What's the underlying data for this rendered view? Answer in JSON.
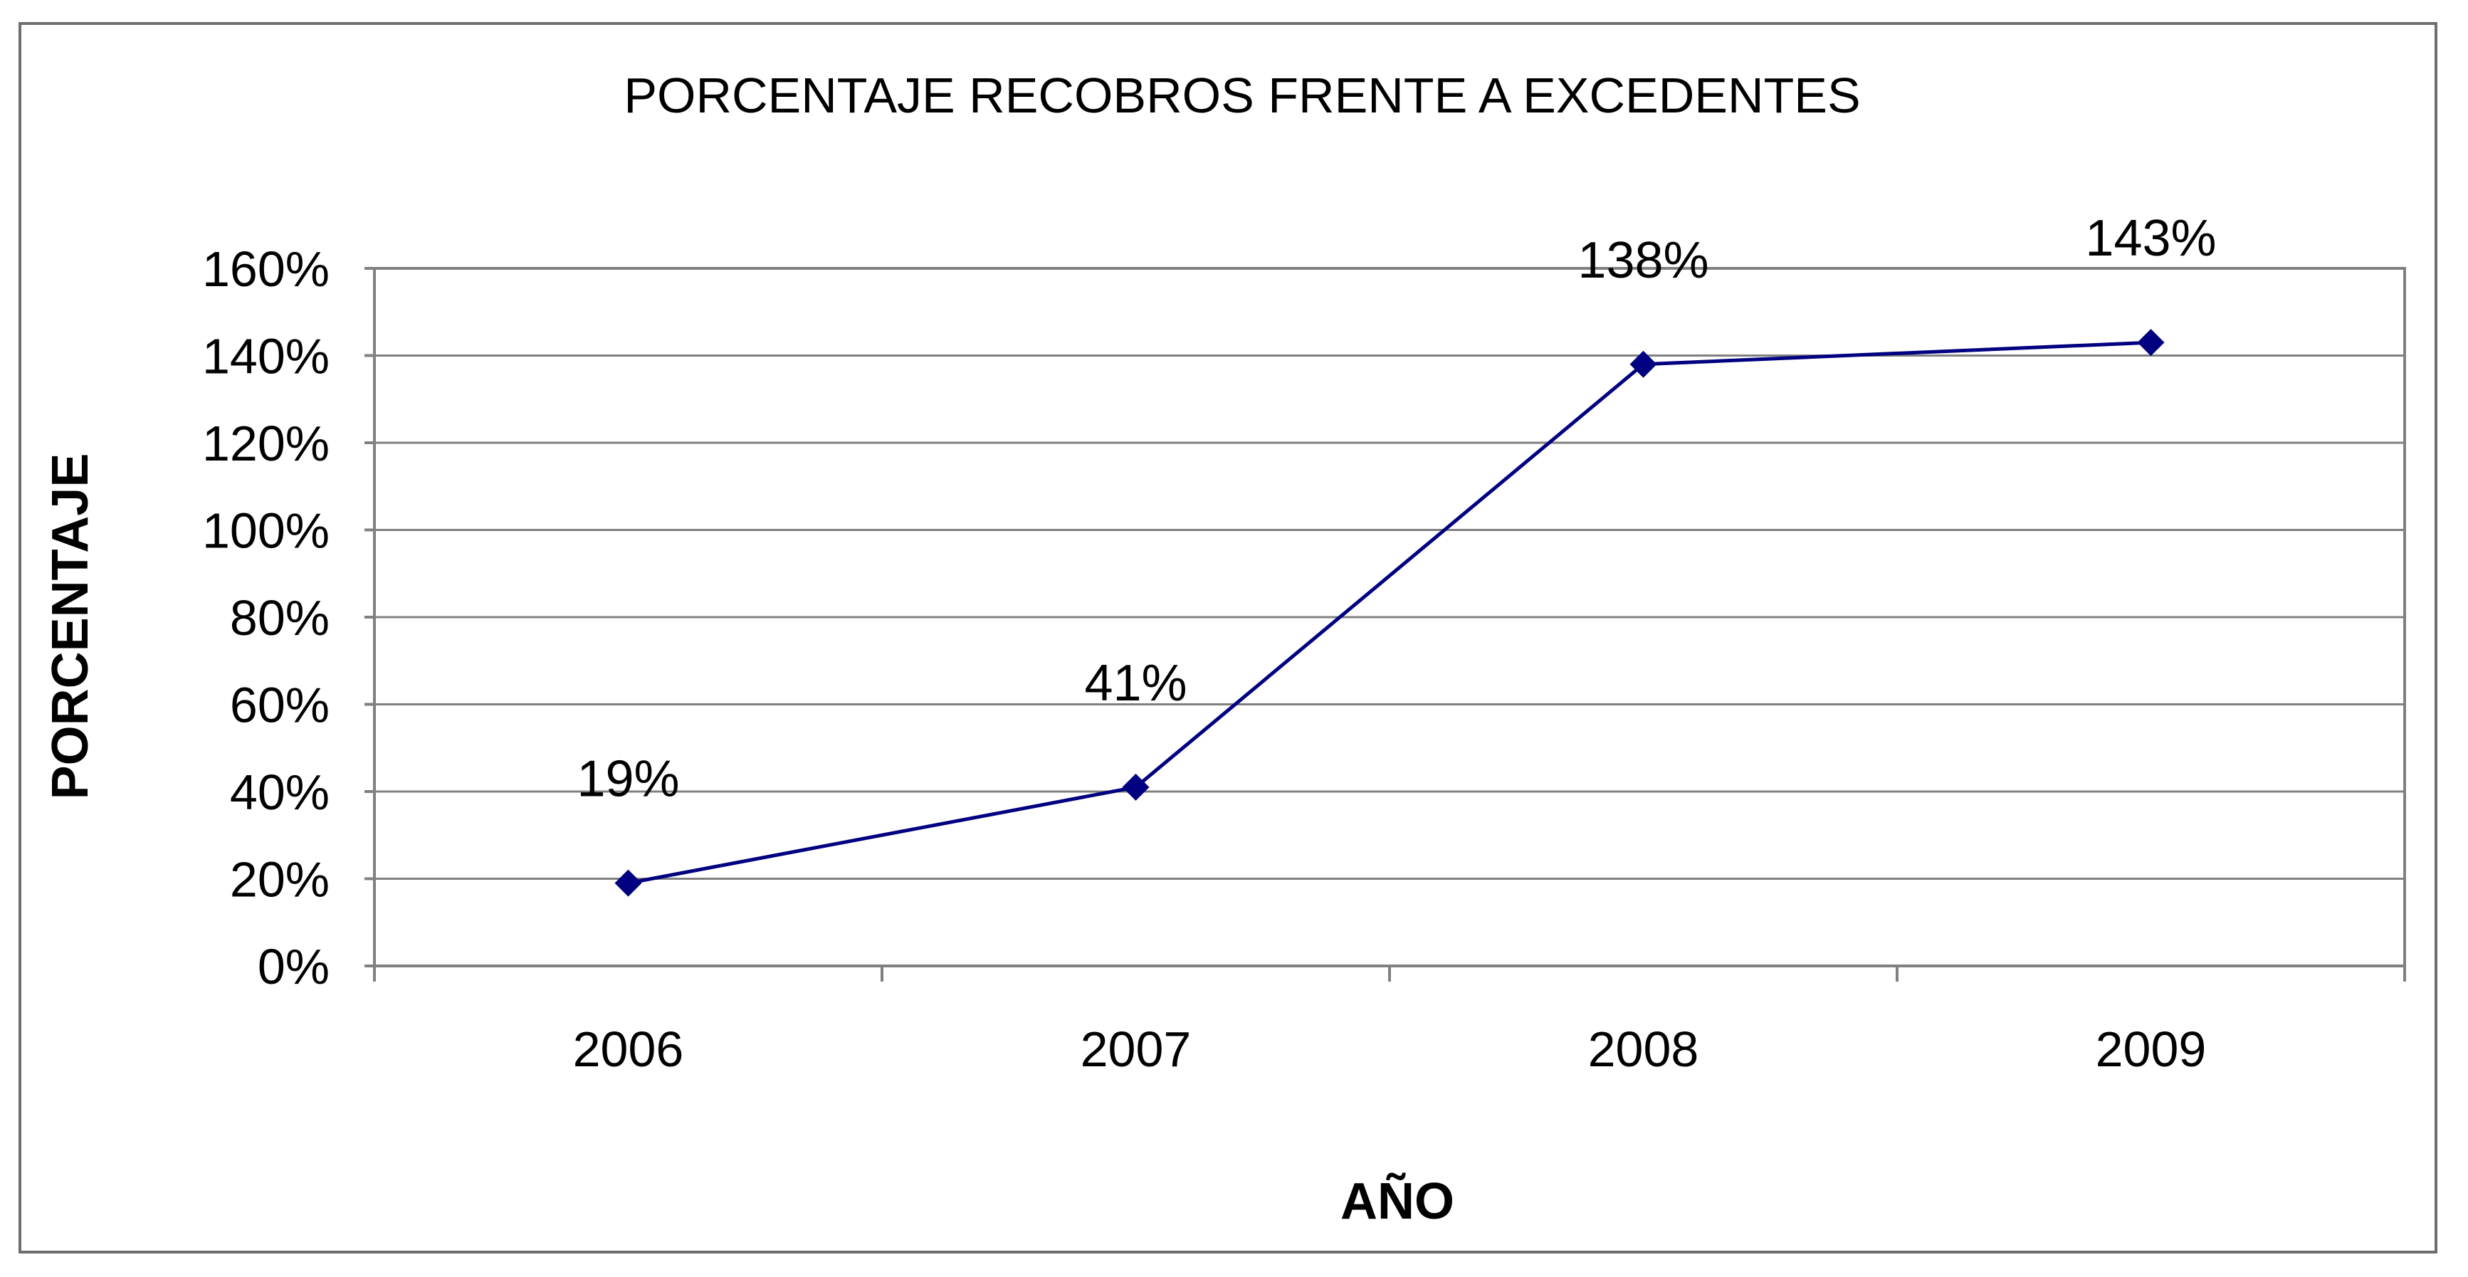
{
  "chart_data": {
    "type": "line",
    "title": "PORCENTAJE RECOBROS FRENTE A EXCEDENTES",
    "xlabel": "AÑO",
    "ylabel": "PORCENTAJE",
    "categories": [
      "2006",
      "2007",
      "2008",
      "2009"
    ],
    "series": [
      {
        "values": [
          19,
          41,
          138,
          143
        ],
        "color": "#000080"
      }
    ],
    "data_labels": [
      "19%",
      "41%",
      "138%",
      "143%"
    ],
    "ylim": [
      0,
      160
    ],
    "yticks": [
      0,
      20,
      40,
      60,
      80,
      100,
      120,
      140,
      160
    ],
    "ytick_labels": [
      "0%",
      "20%",
      "40%",
      "60%",
      "80%",
      "100%",
      "120%",
      "140%",
      "160%"
    ],
    "grid": true,
    "legend": "none",
    "marker": "diamond"
  }
}
